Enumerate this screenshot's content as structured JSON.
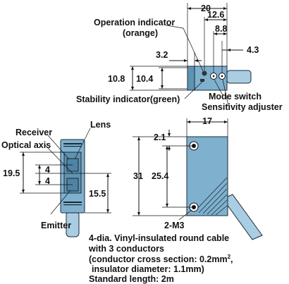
{
  "labels": {
    "operation_indicator": "Operation indicator",
    "operation_indicator_color": "(orange)",
    "stability_indicator": "Stability indicator(green)",
    "mode_switch": "Mode switch",
    "sensitivity_adjuster": "Sensitivity adjuster",
    "receiver": "Receiver",
    "lens": "Lens",
    "optical_axis": "Optical axis",
    "emitter": "Emitter",
    "hole_label": "2-M3"
  },
  "dimensions": {
    "d20": "20",
    "d12_6": "12.6",
    "d8_8": "8.8",
    "d4_3": "4.3",
    "d3_2": "3.2",
    "d10_8": "10.8",
    "d10_4": "10.4",
    "d17": "17",
    "d2_1": "2.1",
    "d31": "31",
    "d25_4": "25.4",
    "d15_5": "15.5",
    "d19_5": "19.5",
    "d4a": "4",
    "d4b": "4"
  },
  "cable_note": {
    "line1": "4-dia. Vinyl-insulated round cable",
    "line2": "with 3 conductors",
    "line3a": "(conductor cross section: 0.2mm",
    "line3_sup": "2",
    "line3b": ",",
    "line4": "insulator diameter: 1.1mm)",
    "line5": "Standard length: 2m"
  }
}
